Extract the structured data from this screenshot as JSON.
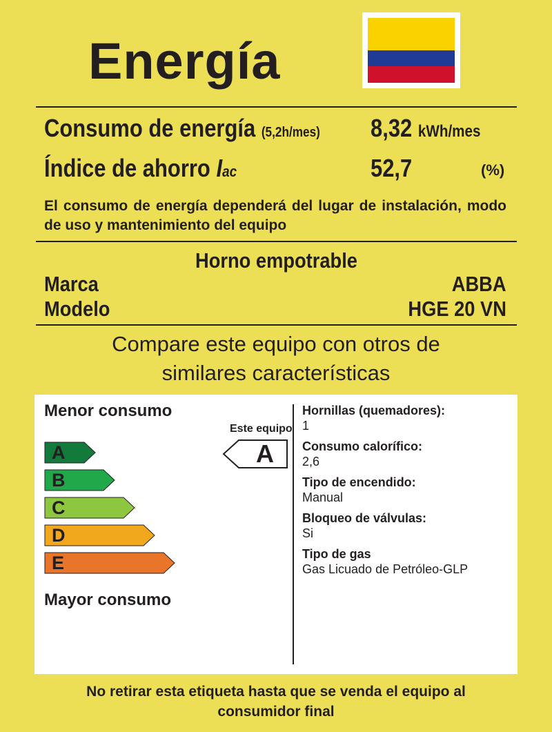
{
  "header": {
    "title": "Energía",
    "flag": {
      "colors": [
        "#FAD200",
        "#1F3A93",
        "#D0112B"
      ],
      "name": "colombia-flag"
    }
  },
  "energy": {
    "consumption_label": "Consumo de energía",
    "consumption_note": "(5,2h/mes)",
    "consumption_value": "8,32",
    "consumption_unit": "kWh/mes",
    "savings_label": "Índice de ahorro",
    "savings_symbol": "I",
    "savings_subscript": "ac",
    "savings_value": "52,7",
    "savings_unit": "(%)"
  },
  "note": "El consumo de energía dependerá del lugar de instalación, modo de uso y mantenimiento del equipo",
  "product": {
    "type": "Horno empotrable",
    "brand_label": "Marca",
    "brand": "ABBA",
    "model_label": "Modelo",
    "model": "HGE 20 VN"
  },
  "compare": {
    "line1": "Compare este equipo con otros de",
    "line2": "similares características"
  },
  "scale": {
    "top_label": "Menor consumo",
    "bottom_label": "Mayor consumo",
    "this_label": "Este equipo",
    "this_class": "A",
    "classes": [
      {
        "letter": "A",
        "color": "#127A3A"
      },
      {
        "letter": "B",
        "color": "#20A84A"
      },
      {
        "letter": "C",
        "color": "#8DC63F"
      },
      {
        "letter": "D",
        "color": "#F2A81D"
      },
      {
        "letter": "E",
        "color": "#E9752B"
      }
    ]
  },
  "specs": [
    {
      "label": "Hornillas (quemadores):",
      "value": "1"
    },
    {
      "label": "Consumo calorífico:",
      "value": "2,6"
    },
    {
      "label": "Tipo de encendido:",
      "value": "Manual"
    },
    {
      "label": "Bloqueo de válvulas:",
      "value": "Si"
    },
    {
      "label": "Tipo de gas",
      "value": "Gas Licuado de Petróleo-GLP"
    }
  ],
  "footer": {
    "line1": "No retirar esta etiqueta hasta que se venda el equipo al",
    "line2": "consumidor final"
  }
}
